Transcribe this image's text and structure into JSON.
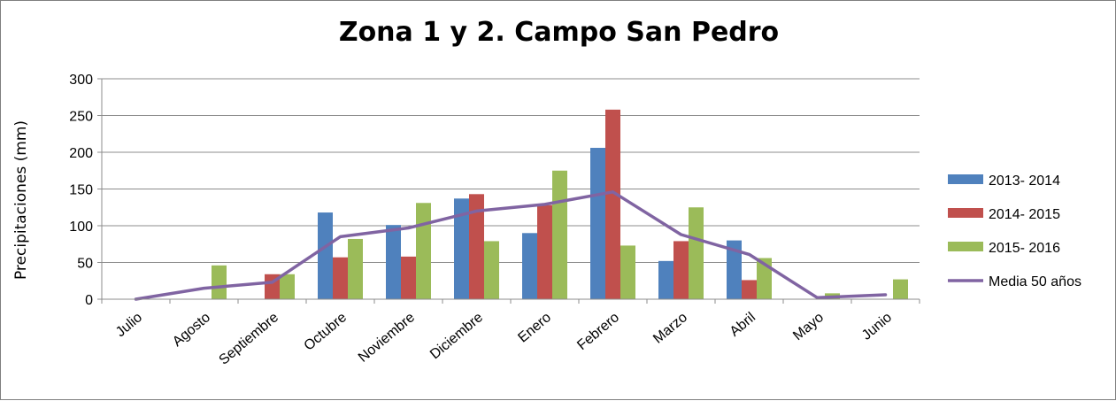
{
  "chart_data": {
    "type": "bar",
    "title": "Zona 1 y 2. Campo San Pedro",
    "ylabel": "Precipitaciones (mm)",
    "xlabel": "",
    "ylim": [
      0,
      300
    ],
    "yticks": [
      0,
      50,
      100,
      150,
      200,
      250,
      300
    ],
    "grid": true,
    "legend_position": "right",
    "categories": [
      "Julio",
      "Agosto",
      "Septiembre",
      "Octubre",
      "Noviembre",
      "Diciembre",
      "Enero",
      "Febrero",
      "Marzo",
      "Abril",
      "Mayo",
      "Junio"
    ],
    "series": [
      {
        "name": "2013- 2014",
        "type": "bar",
        "color": "#4f81bd",
        "values": [
          0,
          0,
          0,
          118,
          101,
          137,
          90,
          206,
          52,
          80,
          0,
          0
        ]
      },
      {
        "name": "2014- 2015",
        "type": "bar",
        "color": "#c0504d",
        "values": [
          0,
          0,
          34,
          57,
          58,
          143,
          128,
          258,
          79,
          26,
          0,
          0
        ]
      },
      {
        "name": "2015- 2016",
        "type": "bar",
        "color": "#9bbb59",
        "values": [
          0,
          46,
          34,
          82,
          131,
          79,
          175,
          73,
          125,
          56,
          8,
          27
        ]
      },
      {
        "name": "Media 50 años",
        "type": "line",
        "color": "#8064a2",
        "values": [
          0,
          15,
          23,
          85,
          97,
          120,
          129,
          146,
          88,
          61,
          2,
          6
        ]
      }
    ]
  }
}
